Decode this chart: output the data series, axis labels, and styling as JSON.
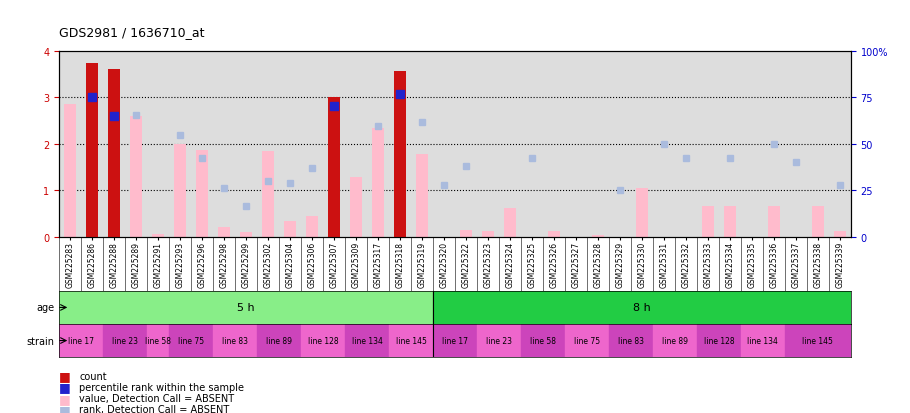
{
  "title": "GDS2981 / 1636710_at",
  "samples": [
    "GSM225283",
    "GSM225286",
    "GSM225288",
    "GSM225289",
    "GSM225291",
    "GSM225293",
    "GSM225296",
    "GSM225298",
    "GSM225299",
    "GSM225302",
    "GSM225304",
    "GSM225306",
    "GSM225307",
    "GSM225309",
    "GSM225317",
    "GSM225318",
    "GSM225319",
    "GSM225320",
    "GSM225322",
    "GSM225323",
    "GSM225324",
    "GSM225325",
    "GSM225326",
    "GSM225327",
    "GSM225328",
    "GSM225329",
    "GSM225330",
    "GSM225331",
    "GSM225332",
    "GSM225333",
    "GSM225334",
    "GSM225335",
    "GSM225336",
    "GSM225337",
    "GSM225338",
    "GSM225339"
  ],
  "count": [
    null,
    3.73,
    3.6,
    null,
    null,
    null,
    null,
    null,
    null,
    null,
    null,
    null,
    3.0,
    null,
    null,
    3.56,
    null,
    null,
    null,
    null,
    null,
    null,
    null,
    null,
    null,
    null,
    null,
    null,
    null,
    null,
    null,
    null,
    null,
    null,
    null,
    null
  ],
  "rank_present": [
    null,
    3.0,
    2.6,
    null,
    null,
    null,
    null,
    null,
    null,
    null,
    null,
    null,
    2.82,
    null,
    null,
    3.07,
    null,
    null,
    null,
    null,
    null,
    null,
    null,
    null,
    null,
    null,
    null,
    null,
    null,
    null,
    null,
    null,
    null,
    null,
    null,
    null
  ],
  "value_absent": [
    2.85,
    null,
    null,
    2.6,
    0.07,
    2.0,
    1.87,
    0.22,
    0.1,
    1.85,
    0.35,
    0.45,
    null,
    1.3,
    2.35,
    null,
    1.78,
    null,
    0.15,
    0.13,
    0.63,
    null,
    0.13,
    null,
    0.05,
    null,
    1.05,
    null,
    null,
    0.67,
    0.67,
    null,
    0.67,
    null,
    0.67,
    0.13
  ],
  "rank_absent": [
    null,
    null,
    null,
    2.62,
    null,
    2.2,
    1.7,
    1.06,
    0.66,
    1.2,
    1.15,
    1.48,
    null,
    null,
    2.38,
    null,
    2.48,
    1.12,
    1.53,
    null,
    null,
    1.7,
    null,
    null,
    null,
    1.0,
    null,
    2.0,
    1.7,
    null,
    1.7,
    null,
    2.0,
    1.62,
    null,
    1.12
  ],
  "ylim_left": [
    0,
    4
  ],
  "ylim_right": [
    0,
    100
  ],
  "yticks_left": [
    0,
    1,
    2,
    3,
    4
  ],
  "yticks_right": [
    0,
    25,
    50,
    75,
    100
  ],
  "age_groups": [
    {
      "label": "5 h",
      "start": 0,
      "end": 17,
      "color": "#88EE88"
    },
    {
      "label": "8 h",
      "start": 17,
      "end": 36,
      "color": "#22CC44"
    }
  ],
  "strain_groups": [
    {
      "label": "line 17",
      "start": 0,
      "end": 2,
      "color": "#EE66CC"
    },
    {
      "label": "line 23",
      "start": 2,
      "end": 4,
      "color": "#CC44BB"
    },
    {
      "label": "line 58",
      "start": 4,
      "end": 5,
      "color": "#EE66CC"
    },
    {
      "label": "line 75",
      "start": 5,
      "end": 7,
      "color": "#CC44BB"
    },
    {
      "label": "line 83",
      "start": 7,
      "end": 9,
      "color": "#EE66CC"
    },
    {
      "label": "line 89",
      "start": 9,
      "end": 11,
      "color": "#CC44BB"
    },
    {
      "label": "line 128",
      "start": 11,
      "end": 13,
      "color": "#EE66CC"
    },
    {
      "label": "line 134",
      "start": 13,
      "end": 15,
      "color": "#CC44BB"
    },
    {
      "label": "line 145",
      "start": 15,
      "end": 17,
      "color": "#EE66CC"
    },
    {
      "label": "line 17",
      "start": 17,
      "end": 19,
      "color": "#CC44BB"
    },
    {
      "label": "line 23",
      "start": 19,
      "end": 21,
      "color": "#EE66CC"
    },
    {
      "label": "line 58",
      "start": 21,
      "end": 23,
      "color": "#CC44BB"
    },
    {
      "label": "line 75",
      "start": 23,
      "end": 25,
      "color": "#EE66CC"
    },
    {
      "label": "line 83",
      "start": 25,
      "end": 27,
      "color": "#CC44BB"
    },
    {
      "label": "line 89",
      "start": 27,
      "end": 29,
      "color": "#EE66CC"
    },
    {
      "label": "line 128",
      "start": 29,
      "end": 31,
      "color": "#CC44BB"
    },
    {
      "label": "line 134",
      "start": 31,
      "end": 33,
      "color": "#EE66CC"
    },
    {
      "label": "line 145",
      "start": 33,
      "end": 36,
      "color": "#CC44BB"
    }
  ],
  "bar_width": 0.55,
  "count_color": "#CC1111",
  "rank_present_color": "#2222CC",
  "value_absent_color": "#FFBBCC",
  "rank_absent_color": "#AABBDD",
  "bg_color": "#FFFFFF",
  "axis_bg": "#DDDDDD",
  "grid_color": "#000000",
  "left_tick_color": "#CC0000",
  "right_tick_color": "#0000CC"
}
